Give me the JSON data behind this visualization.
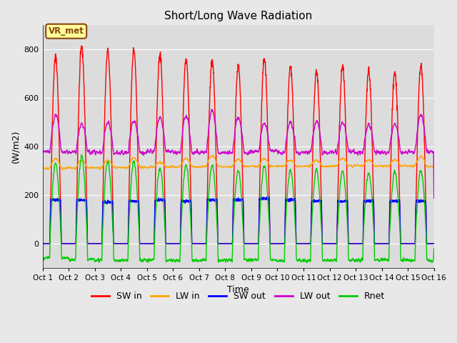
{
  "title": "Short/Long Wave Radiation",
  "xlabel": "Time",
  "ylabel": "(W/m2)",
  "ylim": [
    -100,
    900
  ],
  "xlim": [
    0,
    15
  ],
  "xtick_labels": [
    "Oct 1",
    "Oct 2",
    "Oct 3",
    "Oct 4",
    "Oct 5",
    "Oct 6",
    "Oct 7",
    "Oct 8",
    "Oct 9",
    "Oct 10",
    "Oct 11",
    "Oct 12",
    "Oct 13",
    "Oct 14",
    "Oct 15",
    "Oct 16"
  ],
  "annotation_text": "VR_met",
  "annotation_color": "#8B4513",
  "annotation_bg": "#FFFF99",
  "lines": {
    "SW_in": {
      "color": "#FF0000",
      "label": "SW in",
      "lw": 1.0
    },
    "LW_in": {
      "color": "#FFA500",
      "label": "LW in",
      "lw": 1.0
    },
    "SW_out": {
      "color": "#0000FF",
      "label": "SW out",
      "lw": 1.0
    },
    "LW_out": {
      "color": "#CC00CC",
      "label": "LW out",
      "lw": 1.0
    },
    "Rnet": {
      "color": "#00CC00",
      "label": "Rnet",
      "lw": 1.0
    }
  },
  "bg_color": "#E8E8E8",
  "plot_bg": "#DCDCDC",
  "title_fontsize": 11,
  "legend_fontsize": 9,
  "n_days": 15,
  "pts_per_day": 144,
  "sw_peaks": [
    770,
    810,
    795,
    800,
    780,
    760,
    755,
    730,
    760,
    730,
    710,
    730,
    715,
    705,
    735
  ],
  "day_start": 0.28,
  "day_end": 0.72
}
